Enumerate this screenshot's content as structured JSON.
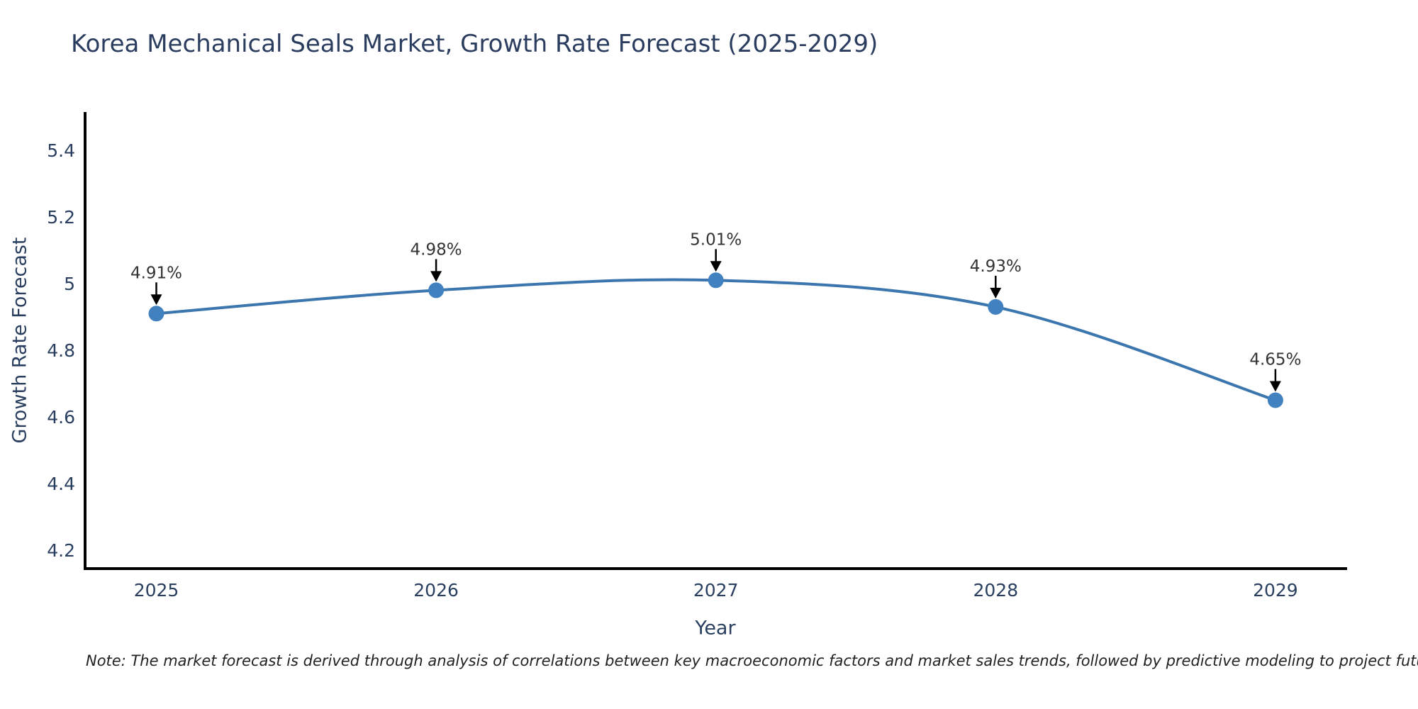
{
  "title": "Korea Mechanical Seals Market, Growth Rate Forecast (2025-2029)",
  "note": "Note: The market forecast is derived through analysis of correlations between key macroeconomic factors and market sales trends, followed by predictive modeling to project future sales",
  "chart_data": {
    "type": "line",
    "title": "Korea Mechanical Seals Market, Growth Rate Forecast (2025-2029)",
    "x": [
      "2025",
      "2026",
      "2027",
      "2028",
      "2029"
    ],
    "series": [
      {
        "name": "Growth Rate Forecast",
        "values": [
          4.91,
          4.98,
          5.01,
          4.93,
          4.65
        ]
      }
    ],
    "point_labels": [
      "4.91%",
      "4.98%",
      "5.01%",
      "4.93%",
      "4.65%"
    ],
    "xlabel": "Year",
    "ylabel": "Growth Rate Forecast",
    "yticks": [
      5.4,
      5.2,
      5.0,
      4.8,
      4.6,
      4.4,
      4.2
    ],
    "ytick_labels": [
      "5.4",
      "5.2",
      "5",
      "4.8",
      "4.6",
      "4.4",
      "4.2"
    ],
    "ylim": [
      4.15,
      5.51
    ],
    "grid": false,
    "legend": "none",
    "line_shape": "spline",
    "annotation_arrows": "down",
    "colors": {
      "line": "#3c76ae",
      "marker": "#4181c0",
      "axis": "#000000",
      "tick_text": "#2a3f5f",
      "title_text": "#2b3d5f",
      "annotation_text": "#333333",
      "annotation_arrow": "#000000"
    }
  }
}
